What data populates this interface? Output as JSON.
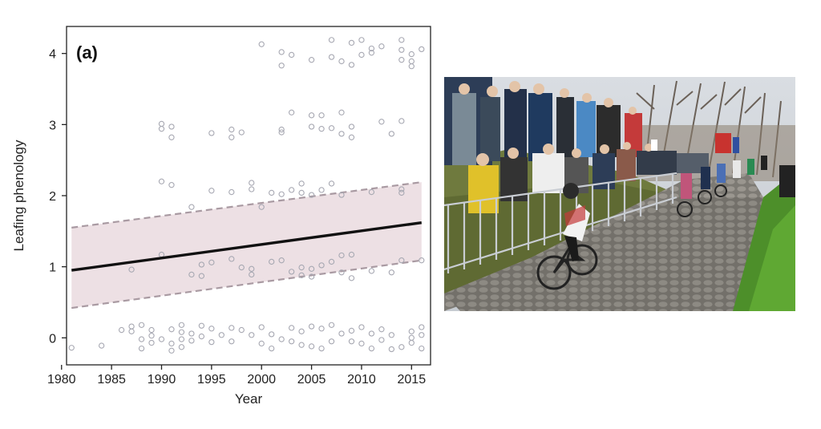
{
  "chart_data": {
    "type": "scatter",
    "panel_label": "(a)",
    "xlabel": "Year",
    "ylabel": "Leafing phenology",
    "xlim": [
      1980.5,
      2016.9
    ],
    "ylim": [
      -0.38,
      4.38
    ],
    "xticks": [
      1980,
      1985,
      1990,
      1995,
      2000,
      2005,
      2010,
      2015
    ],
    "yticks": [
      0,
      1,
      2,
      3,
      4
    ],
    "grid": false,
    "fit_line": {
      "x": [
        1981,
        2016
      ],
      "y": [
        0.95,
        1.62
      ]
    },
    "confidence_band": {
      "x": [
        1981,
        2016
      ],
      "lower": [
        0.42,
        1.09
      ],
      "upper": [
        1.55,
        2.19
      ]
    },
    "points": [
      [
        1981,
        -0.14
      ],
      [
        1984,
        -0.11
      ],
      [
        1986,
        0.11
      ],
      [
        1987,
        0.96
      ],
      [
        1987,
        0.09
      ],
      [
        1987,
        0.16
      ],
      [
        1988,
        0.18
      ],
      [
        1988,
        -0.02
      ],
      [
        1988,
        -0.15
      ],
      [
        1989,
        0.11
      ],
      [
        1989,
        0.03
      ],
      [
        1989,
        -0.07
      ],
      [
        1990,
        3.01
      ],
      [
        1990,
        2.94
      ],
      [
        1990,
        2.2
      ],
      [
        1990,
        1.17
      ],
      [
        1990,
        -0.02
      ],
      [
        1991,
        2.97
      ],
      [
        1991,
        2.82
      ],
      [
        1991,
        2.15
      ],
      [
        1991,
        0.12
      ],
      [
        1991,
        -0.08
      ],
      [
        1991,
        -0.18
      ],
      [
        1992,
        0.18
      ],
      [
        1992,
        0.08
      ],
      [
        1992,
        -0.02
      ],
      [
        1992,
        -0.13
      ],
      [
        1993,
        1.84
      ],
      [
        1993,
        0.89
      ],
      [
        1993,
        0.06
      ],
      [
        1993,
        -0.04
      ],
      [
        1994,
        1.03
      ],
      [
        1994,
        0.87
      ],
      [
        1994,
        0.17
      ],
      [
        1994,
        0.02
      ],
      [
        1995,
        2.88
      ],
      [
        1995,
        2.07
      ],
      [
        1995,
        1.06
      ],
      [
        1995,
        0.13
      ],
      [
        1995,
        -0.06
      ],
      [
        1996,
        0.04
      ],
      [
        1997,
        2.93
      ],
      [
        1997,
        2.82
      ],
      [
        1997,
        2.05
      ],
      [
        1997,
        1.11
      ],
      [
        1997,
        0.14
      ],
      [
        1997,
        -0.05
      ],
      [
        1998,
        2.89
      ],
      [
        1998,
        0.99
      ],
      [
        1998,
        0.11
      ],
      [
        1999,
        2.18
      ],
      [
        1999,
        2.09
      ],
      [
        1999,
        0.97
      ],
      [
        1999,
        0.89
      ],
      [
        1999,
        0.04
      ],
      [
        2000,
        4.13
      ],
      [
        2000,
        1.84
      ],
      [
        2000,
        0.15
      ],
      [
        2000,
        -0.08
      ],
      [
        2001,
        2.04
      ],
      [
        2001,
        1.07
      ],
      [
        2001,
        0.05
      ],
      [
        2001,
        -0.15
      ],
      [
        2002,
        4.02
      ],
      [
        2002,
        3.83
      ],
      [
        2002,
        2.93
      ],
      [
        2002,
        2.89
      ],
      [
        2002,
        2.02
      ],
      [
        2002,
        1.09
      ],
      [
        2002,
        -0.02
      ],
      [
        2003,
        3.98
      ],
      [
        2003,
        3.17
      ],
      [
        2003,
        2.08
      ],
      [
        2003,
        0.93
      ],
      [
        2003,
        0.14
      ],
      [
        2003,
        -0.05
      ],
      [
        2004,
        2.17
      ],
      [
        2004,
        2.04
      ],
      [
        2004,
        0.99
      ],
      [
        2004,
        0.88
      ],
      [
        2004,
        0.09
      ],
      [
        2004,
        -0.1
      ],
      [
        2005,
        3.91
      ],
      [
        2005,
        3.13
      ],
      [
        2005,
        2.97
      ],
      [
        2005,
        2.01
      ],
      [
        2005,
        0.97
      ],
      [
        2005,
        0.86
      ],
      [
        2005,
        0.16
      ],
      [
        2005,
        -0.12
      ],
      [
        2006,
        3.13
      ],
      [
        2006,
        2.94
      ],
      [
        2006,
        2.08
      ],
      [
        2006,
        1.02
      ],
      [
        2006,
        0.13
      ],
      [
        2006,
        -0.15
      ],
      [
        2007,
        4.19
      ],
      [
        2007,
        3.95
      ],
      [
        2007,
        2.95
      ],
      [
        2007,
        2.17
      ],
      [
        2007,
        1.07
      ],
      [
        2007,
        0.18
      ],
      [
        2007,
        -0.05
      ],
      [
        2008,
        3.89
      ],
      [
        2008,
        3.17
      ],
      [
        2008,
        2.87
      ],
      [
        2008,
        2.01
      ],
      [
        2008,
        1.16
      ],
      [
        2008,
        0.92
      ],
      [
        2008,
        0.06
      ],
      [
        2009,
        4.15
      ],
      [
        2009,
        3.84
      ],
      [
        2009,
        2.97
      ],
      [
        2009,
        2.82
      ],
      [
        2009,
        1.17
      ],
      [
        2009,
        0.84
      ],
      [
        2009,
        0.1
      ],
      [
        2009,
        -0.05
      ],
      [
        2010,
        4.19
      ],
      [
        2010,
        3.98
      ],
      [
        2010,
        0.15
      ],
      [
        2010,
        -0.08
      ],
      [
        2011,
        4.07
      ],
      [
        2011,
        4.01
      ],
      [
        2011,
        2.05
      ],
      [
        2011,
        0.94
      ],
      [
        2011,
        0.06
      ],
      [
        2011,
        -0.15
      ],
      [
        2012,
        4.1
      ],
      [
        2012,
        3.04
      ],
      [
        2012,
        0.12
      ],
      [
        2012,
        -0.03
      ],
      [
        2013,
        2.87
      ],
      [
        2013,
        0.92
      ],
      [
        2013,
        0.04
      ],
      [
        2013,
        -0.16
      ],
      [
        2014,
        4.19
      ],
      [
        2014,
        4.05
      ],
      [
        2014,
        3.91
      ],
      [
        2014,
        3.05
      ],
      [
        2014,
        2.09
      ],
      [
        2014,
        2.04
      ],
      [
        2014,
        1.09
      ],
      [
        2014,
        -0.13
      ],
      [
        2015,
        3.99
      ],
      [
        2015,
        3.89
      ],
      [
        2015,
        3.82
      ],
      [
        2015,
        0.09
      ],
      [
        2015,
        0.0
      ],
      [
        2015,
        -0.07
      ],
      [
        2016,
        4.06
      ],
      [
        2016,
        1.09
      ],
      [
        2016,
        0.15
      ],
      [
        2016,
        0.04
      ],
      [
        2016,
        -0.15
      ]
    ]
  },
  "photo": {
    "icon": "cycling-race-photo"
  },
  "colors": {
    "points": "#a7a8b2",
    "band": "#ede0e4",
    "band_edge": "#a99aa2",
    "line": "#111111",
    "axis": "#222222"
  }
}
